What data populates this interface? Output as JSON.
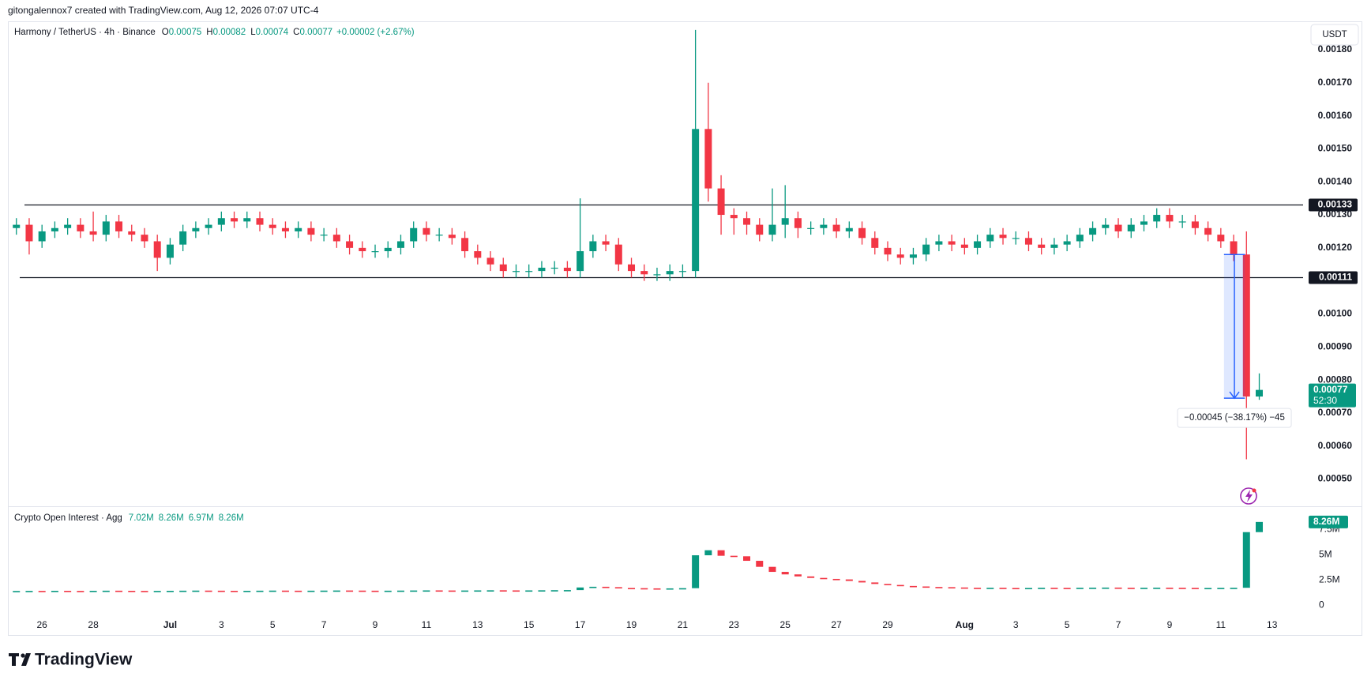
{
  "header": {
    "attribution": "gitongalennox7 created with TradingView.com, Aug 12, 2026 07:07 UTC-4",
    "logo": "TradingView",
    "currency": "USDT"
  },
  "chart_data": [
    {
      "type": "candlestick",
      "title": "Harmony / TetherUS · 4h · Binance",
      "ohlc_legend": [
        {
          "key": "O",
          "value": "0.00075"
        },
        {
          "key": "H",
          "value": "0.00082"
        },
        {
          "key": "L",
          "value": "0.00074"
        },
        {
          "key": "C",
          "value": "0.00077"
        }
      ],
      "change": "+0.00002 (+2.67%)",
      "up_color": "#089981",
      "down_color": "#f23645",
      "x": [
        25,
        25.5,
        26,
        26.5,
        27,
        27.5,
        28,
        28.5,
        29,
        29.5,
        30,
        30.5,
        31,
        31.5,
        32,
        32.5,
        33,
        33.5,
        34,
        34.5,
        35,
        35.5,
        36,
        36.5,
        37,
        37.5,
        38,
        38.5,
        39,
        39.5,
        40,
        40.5,
        41,
        41.5,
        42,
        42.5,
        43,
        43.5,
        44,
        44.5,
        45,
        45.5,
        46,
        46.5,
        47,
        47.5,
        48,
        48.5,
        49,
        49.5,
        50,
        50.5,
        51,
        51.5,
        52,
        52.5,
        53,
        53.5,
        54,
        54.5,
        55,
        55.5,
        56,
        56.5,
        57,
        57.5,
        58,
        58.5,
        59,
        59.5,
        60,
        60.5,
        61,
        61.5,
        62,
        62.5,
        63,
        63.5,
        64,
        64.5,
        65,
        65.5,
        66,
        66.5,
        67,
        67.5,
        68,
        68.5,
        69,
        69.5,
        70,
        70.5,
        71,
        71.5,
        72,
        72.5,
        73,
        73.5
      ],
      "open": [
        0.00126,
        0.00127,
        0.00122,
        0.00125,
        0.00126,
        0.00127,
        0.00125,
        0.00124,
        0.00128,
        0.00125,
        0.00124,
        0.00122,
        0.00117,
        0.00121,
        0.00125,
        0.00126,
        0.00127,
        0.00129,
        0.00128,
        0.00129,
        0.00127,
        0.00126,
        0.00125,
        0.00126,
        0.00124,
        0.00124,
        0.00122,
        0.0012,
        0.00119,
        0.00119,
        0.0012,
        0.00122,
        0.00126,
        0.00124,
        0.00124,
        0.00123,
        0.00119,
        0.00117,
        0.00115,
        0.00113,
        0.00113,
        0.00113,
        0.00114,
        0.00114,
        0.00113,
        0.00119,
        0.00122,
        0.00121,
        0.00115,
        0.00113,
        0.00112,
        0.00112,
        0.00113,
        0.00113,
        0.00156,
        0.00138,
        0.0013,
        0.00129,
        0.00127,
        0.00124,
        0.00127,
        0.00129,
        0.00126,
        0.00126,
        0.00127,
        0.00125,
        0.00126,
        0.00123,
        0.0012,
        0.00118,
        0.00117,
        0.00118,
        0.00121,
        0.00122,
        0.00121,
        0.0012,
        0.00122,
        0.00124,
        0.00123,
        0.00123,
        0.00121,
        0.0012,
        0.00121,
        0.00122,
        0.00124,
        0.00126,
        0.00127,
        0.00125,
        0.00127,
        0.00128,
        0.0013,
        0.00128,
        0.00128,
        0.00126,
        0.00124,
        0.00122,
        0.00118,
        0.00075
      ],
      "high": [
        0.00129,
        0.00129,
        0.00127,
        0.00128,
        0.00129,
        0.00129,
        0.00131,
        0.0013,
        0.0013,
        0.00127,
        0.00126,
        0.00124,
        0.00123,
        0.00127,
        0.00128,
        0.00129,
        0.00131,
        0.00131,
        0.00131,
        0.00131,
        0.00129,
        0.00128,
        0.00128,
        0.00128,
        0.00126,
        0.00126,
        0.00124,
        0.00122,
        0.00121,
        0.00122,
        0.00124,
        0.00128,
        0.00128,
        0.00126,
        0.00126,
        0.00125,
        0.00121,
        0.00119,
        0.00117,
        0.00115,
        0.00115,
        0.00116,
        0.00116,
        0.00116,
        0.00135,
        0.00124,
        0.00124,
        0.00123,
        0.00117,
        0.00115,
        0.00114,
        0.00115,
        0.00115,
        0.00186,
        0.0017,
        0.00142,
        0.00132,
        0.00131,
        0.00129,
        0.00138,
        0.00139,
        0.00131,
        0.00128,
        0.00129,
        0.00129,
        0.00128,
        0.00128,
        0.00125,
        0.00122,
        0.0012,
        0.0012,
        0.00123,
        0.00124,
        0.00124,
        0.00123,
        0.00124,
        0.00126,
        0.00126,
        0.00125,
        0.00125,
        0.00123,
        0.00123,
        0.00124,
        0.00126,
        0.00128,
        0.00129,
        0.00129,
        0.00129,
        0.0013,
        0.00132,
        0.00132,
        0.0013,
        0.0013,
        0.00128,
        0.00126,
        0.00124,
        0.00125,
        0.00082
      ],
      "low": [
        0.00124,
        0.00118,
        0.0012,
        0.00123,
        0.00124,
        0.00123,
        0.00122,
        0.00122,
        0.00123,
        0.00122,
        0.0012,
        0.00113,
        0.00115,
        0.00119,
        0.00123,
        0.00124,
        0.00125,
        0.00126,
        0.00126,
        0.00125,
        0.00124,
        0.00123,
        0.00123,
        0.00122,
        0.00122,
        0.0012,
        0.00118,
        0.00117,
        0.00117,
        0.00117,
        0.00118,
        0.0012,
        0.00122,
        0.00122,
        0.00121,
        0.00117,
        0.00115,
        0.00113,
        0.00111,
        0.00111,
        0.00111,
        0.00111,
        0.00112,
        0.00111,
        0.00111,
        0.00117,
        0.00119,
        0.00113,
        0.00111,
        0.0011,
        0.0011,
        0.0011,
        0.00111,
        0.00111,
        0.00134,
        0.00124,
        0.00124,
        0.00124,
        0.00122,
        0.00122,
        0.00123,
        0.00123,
        0.00124,
        0.00124,
        0.00123,
        0.00123,
        0.00121,
        0.00118,
        0.00116,
        0.00115,
        0.00115,
        0.00116,
        0.00119,
        0.00119,
        0.00118,
        0.00118,
        0.0012,
        0.00121,
        0.00121,
        0.00119,
        0.00118,
        0.00118,
        0.00119,
        0.0012,
        0.00122,
        0.00124,
        0.00123,
        0.00123,
        0.00125,
        0.00126,
        0.00126,
        0.00126,
        0.00124,
        0.00122,
        0.0012,
        0.00116,
        0.00056,
        0.00074
      ],
      "close": [
        0.00127,
        0.00122,
        0.00125,
        0.00126,
        0.00127,
        0.00125,
        0.00124,
        0.00128,
        0.00125,
        0.00124,
        0.00122,
        0.00117,
        0.00121,
        0.00125,
        0.00126,
        0.00127,
        0.00129,
        0.00128,
        0.00129,
        0.00127,
        0.00126,
        0.00125,
        0.00126,
        0.00124,
        0.00124,
        0.00122,
        0.0012,
        0.00119,
        0.00119,
        0.0012,
        0.00122,
        0.00126,
        0.00124,
        0.00124,
        0.00123,
        0.00119,
        0.00117,
        0.00115,
        0.00113,
        0.00113,
        0.00113,
        0.00114,
        0.00114,
        0.00113,
        0.00119,
        0.00122,
        0.00121,
        0.00115,
        0.00113,
        0.00112,
        0.00112,
        0.00113,
        0.00113,
        0.00156,
        0.00138,
        0.0013,
        0.00129,
        0.00127,
        0.00124,
        0.00127,
        0.00129,
        0.00126,
        0.00126,
        0.00127,
        0.00125,
        0.00126,
        0.00123,
        0.0012,
        0.00118,
        0.00117,
        0.00118,
        0.00121,
        0.00122,
        0.00121,
        0.0012,
        0.00122,
        0.00124,
        0.00123,
        0.00123,
        0.00121,
        0.0012,
        0.00121,
        0.00122,
        0.00124,
        0.00126,
        0.00127,
        0.00125,
        0.00127,
        0.00128,
        0.0013,
        0.00128,
        0.00128,
        0.00126,
        0.00124,
        0.00122,
        0.00118,
        0.00075,
        0.00077
      ],
      "xlim": [
        24.7,
        75.21
      ],
      "xticks": [
        {
          "value": 26,
          "label": "26"
        },
        {
          "value": 28,
          "label": "28"
        },
        {
          "value": 31,
          "label": "Jul"
        },
        {
          "value": 33,
          "label": "3"
        },
        {
          "value": 35,
          "label": "5"
        },
        {
          "value": 37,
          "label": "7"
        },
        {
          "value": 39,
          "label": "9"
        },
        {
          "value": 41,
          "label": "11"
        },
        {
          "value": 43,
          "label": "13"
        },
        {
          "value": 45,
          "label": "15"
        },
        {
          "value": 47,
          "label": "17"
        },
        {
          "value": 49,
          "label": "19"
        },
        {
          "value": 51,
          "label": "21"
        },
        {
          "value": 53,
          "label": "23"
        },
        {
          "value": 55,
          "label": "25"
        },
        {
          "value": 57,
          "label": "27"
        },
        {
          "value": 59,
          "label": "29"
        },
        {
          "value": 62,
          "label": "Aug"
        },
        {
          "value": 64,
          "label": "3"
        },
        {
          "value": 66,
          "label": "5"
        },
        {
          "value": 68,
          "label": "7"
        },
        {
          "value": 70,
          "label": "9"
        },
        {
          "value": 72,
          "label": "11"
        },
        {
          "value": 74,
          "label": "13"
        }
      ],
      "ylim": [
        0.00042,
        0.001886
      ],
      "yticks": [
        {
          "value": 0.0005,
          "label": "0.00050"
        },
        {
          "value": 0.0006,
          "label": "0.00060"
        },
        {
          "value": 0.0007,
          "label": "0.00070"
        },
        {
          "value": 0.0008,
          "label": "0.00080"
        },
        {
          "value": 0.0009,
          "label": "0.00090"
        },
        {
          "value": 0.001,
          "label": "0.00100"
        },
        {
          "value": 0.0011,
          "label": "0.00110"
        },
        {
          "value": 0.0012,
          "label": "0.00120"
        },
        {
          "value": 0.0013,
          "label": "0.00130"
        },
        {
          "value": 0.0014,
          "label": "0.00140"
        },
        {
          "value": 0.0015,
          "label": "0.00150"
        },
        {
          "value": 0.0016,
          "label": "0.00160"
        },
        {
          "value": 0.0017,
          "label": "0.00170"
        },
        {
          "value": 0.0018,
          "label": "0.00180"
        }
      ],
      "grid": false,
      "hlines": [
        {
          "value": 0.00133,
          "label": "0.00133"
        },
        {
          "value": 0.00111,
          "label": "0.00111"
        }
      ],
      "price_label": "0.00077",
      "countdown": "52:30",
      "measure": {
        "from": 0.00118,
        "to": 0.000745,
        "label": "−0.00045 (−38.17%) −45"
      }
    },
    {
      "type": "bar",
      "title": "Crypto Open Interest · Agg",
      "legend_values": [
        "7.02M",
        "8.26M",
        "6.97M",
        "8.26M"
      ],
      "last_label": "8.26M",
      "values": [
        1.4,
        1.41,
        1.4,
        1.42,
        1.41,
        1.4,
        1.42,
        1.43,
        1.42,
        1.41,
        1.4,
        1.41,
        1.42,
        1.43,
        1.44,
        1.43,
        1.42,
        1.41,
        1.42,
        1.43,
        1.44,
        1.43,
        1.42,
        1.43,
        1.44,
        1.45,
        1.44,
        1.43,
        1.42,
        1.43,
        1.44,
        1.45,
        1.46,
        1.45,
        1.44,
        1.45,
        1.46,
        1.47,
        1.46,
        1.45,
        1.46,
        1.47,
        1.48,
        1.49,
        1.75,
        1.82,
        1.78,
        1.7,
        1.68,
        1.66,
        1.65,
        1.66,
        1.68,
        4.95,
        5.45,
        4.9,
        4.85,
        4.4,
        3.8,
        3.3,
        3.05,
        2.85,
        2.7,
        2.6,
        2.55,
        2.4,
        2.25,
        2.1,
        2.0,
        1.9,
        1.85,
        1.8,
        1.78,
        1.75,
        1.72,
        1.7,
        1.72,
        1.7,
        1.68,
        1.7,
        1.72,
        1.71,
        1.7,
        1.72,
        1.73,
        1.74,
        1.72,
        1.71,
        1.72,
        1.73,
        1.72,
        1.71,
        1.7,
        1.7,
        1.71,
        1.72,
        7.25,
        8.26
      ],
      "ylim": [
        -0.7,
        9.74
      ],
      "yticks": [
        0,
        {
          "value": 2.5,
          "label": "2.5M"
        },
        {
          "value": 5,
          "label": "5M"
        },
        {
          "value": 7.5,
          "label": "7.5M"
        }
      ]
    }
  ]
}
